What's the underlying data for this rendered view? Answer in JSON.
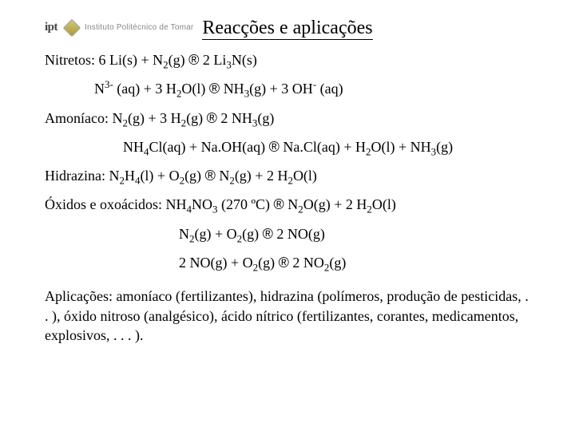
{
  "logo": {
    "ipt": "ipt",
    "institute": "Instituto Politécnico de Tomar"
  },
  "title": "Reacções e aplicações",
  "lines": {
    "l1_pre": "Nitretos: 6 Li(s) + N",
    "l1_mid": "(g) ",
    "l1_arrow": "®",
    "l1_post1": " 2 Li",
    "l1_post2": "N(s)",
    "l2_pre": "N",
    "l2_sup": "3-",
    "l2_mid1": " (aq) + 3 H",
    "l2_mid2": "O(l) ",
    "l2_arrow": "®",
    "l2_post1": " NH",
    "l2_post2": "(g) + 3 OH",
    "l2_sup2": "-",
    "l2_post3": " (aq)",
    "l3_pre": "Amoníaco: N",
    "l3_mid1": "(g) + 3 H",
    "l3_mid2": "(g) ",
    "l3_arrow": "®",
    "l3_post1": " 2 NH",
    "l3_post2": "(g)",
    "l4_pre": "NH",
    "l4_mid1": "Cl(aq) + Na.OH(aq) ",
    "l4_arrow": "®",
    "l4_post1": " Na.Cl(aq) + H",
    "l4_post2": "O(l) + NH",
    "l4_post3": "(g)",
    "l5_pre": "Hidrazina: N",
    "l5_mid1": "H",
    "l5_mid2": "(l) + O",
    "l5_mid3": "(g) ",
    "l5_arrow": "®",
    "l5_post1": " N",
    "l5_post2": "(g) + 2 H",
    "l5_post3": "O(l)",
    "l6_pre": "Óxidos e oxoácidos: NH",
    "l6_mid1": "NO",
    "l6_mid2": " (270 ºC) ",
    "l6_arrow": "®",
    "l6_post1": " N",
    "l6_post2": "O(g) + 2 H",
    "l6_post3": "O(l)",
    "l7_pre": "N",
    "l7_mid1": "(g) + O",
    "l7_mid2": "(g) ",
    "l7_arrow": "®",
    "l7_post": " 2 NO(g)",
    "l8_pre": "2 NO(g) + O",
    "l8_mid": "(g) ",
    "l8_arrow": "®",
    "l8_post1": " 2 NO",
    "l8_post2": "(g)"
  },
  "sub": {
    "two": "2",
    "three": "3",
    "four": "4"
  },
  "para": "Aplicações: amoníaco (fertilizantes), hidrazina (polímeros, produção de pesticidas, . . ), óxido nitroso (analgésico), ácido nítrico (fertilizantes, corantes, medicamentos, explosivos, . . . )."
}
